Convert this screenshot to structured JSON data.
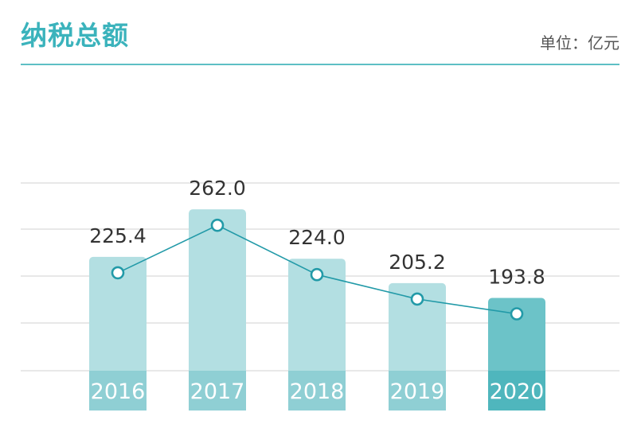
{
  "header": {
    "title": "纳税总额",
    "unit": "单位：亿元"
  },
  "chart_data": {
    "type": "bar",
    "categories": [
      "2016",
      "2017",
      "2018",
      "2019",
      "2020"
    ],
    "values": [
      225.4,
      262.0,
      224.0,
      205.2,
      193.8
    ],
    "value_labels": [
      "225.4",
      "262.0",
      "224.0",
      "205.2",
      "193.8"
    ],
    "overlay": "line",
    "highlight_index": 4,
    "ylim": [
      150,
      275
    ],
    "grid": true,
    "colors": {
      "bar": "#b3dfe2",
      "bar_base": "#8fcfd4",
      "bar_highlight": "#6cc3c8",
      "bar_highlight_base": "#4fb6bd",
      "line": "#229aa8",
      "grid": "#d9d9d9"
    }
  }
}
